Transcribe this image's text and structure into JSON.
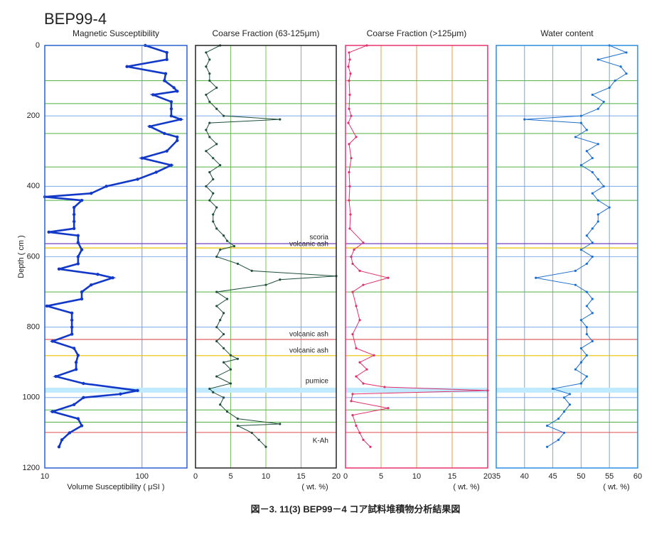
{
  "title": "BEP99-4",
  "caption": "図－3. 11(3) BEP99－4 コア試料堆積物分析結果図",
  "annotations": [
    {
      "text": "scoria",
      "depth": 563,
      "color": "#7040c0"
    },
    {
      "text": "volcanic ash",
      "depth": 575,
      "color": "#e8c000"
    },
    {
      "text": "volcanic ash",
      "depth": 835,
      "color": "#e06060"
    },
    {
      "text": "volcanic ash",
      "depth": 881,
      "color": "#e8c000"
    },
    {
      "text": "pumice",
      "depth_range": [
        972,
        986
      ],
      "color": "#bfeaff"
    },
    {
      "text": "K-Ah",
      "depth": 1099,
      "color": "#e06060"
    }
  ],
  "horizons": [
    {
      "depth": 100,
      "color": "#50b040"
    },
    {
      "depth": 165,
      "color": "#50b040"
    },
    {
      "depth": 250,
      "color": "#50b040"
    },
    {
      "depth": 345,
      "color": "#50b040"
    },
    {
      "depth": 440,
      "color": "#50b040"
    },
    {
      "depth": 700,
      "color": "#50b040"
    },
    {
      "depth": 1035,
      "color": "#50b040"
    },
    {
      "depth": 1070,
      "color": "#50b040"
    }
  ],
  "chart_data": [
    {
      "type": "line",
      "title": "Magnetic Susceptibility",
      "xlabel": "Volume Susceptibility ( μSI )",
      "ylabel": "Depth ( cm )",
      "log_x": true,
      "xlim": [
        10,
        290
      ],
      "xticks": [
        10,
        100
      ],
      "ylim": [
        0,
        1200
      ],
      "yticks": [
        0,
        200,
        400,
        600,
        800,
        1000,
        1200
      ],
      "color": "#1238c8",
      "frame_color": "#2a60d0",
      "grid_color": "#6a9ae8",
      "depth": [
        0,
        20,
        40,
        60,
        80,
        100,
        120,
        130,
        140,
        160,
        180,
        200,
        210,
        230,
        250,
        260,
        270,
        300,
        320,
        340,
        360,
        380,
        400,
        420,
        430,
        440,
        460,
        480,
        500,
        520,
        530,
        540,
        560,
        580,
        600,
        620,
        635,
        650,
        660,
        680,
        700,
        720,
        740,
        760,
        780,
        800,
        820,
        840,
        860,
        880,
        900,
        920,
        940,
        960,
        980,
        990,
        1000,
        1020,
        1040,
        1060,
        1080,
        1100,
        1120,
        1140
      ],
      "values": [
        108,
        180,
        180,
        70,
        175,
        170,
        213,
        230,
        130,
        200,
        200,
        200,
        250,
        120,
        170,
        230,
        230,
        180,
        100,
        200,
        140,
        90,
        43,
        30,
        10,
        24,
        20,
        20,
        20,
        20,
        11,
        22,
        22,
        24,
        22,
        22,
        14,
        35,
        50,
        30,
        24,
        24,
        10.5,
        19,
        19,
        19,
        19,
        12,
        20,
        22,
        21,
        21,
        13,
        25,
        90,
        60,
        25,
        20,
        12,
        22,
        24,
        18,
        15,
        14
      ]
    },
    {
      "type": "line",
      "title": "Coarse Fraction (63-125μm)",
      "xlabel": "( wt. %)",
      "xlim": [
        0,
        20
      ],
      "xticks": [
        0,
        5,
        10,
        15,
        20
      ],
      "ylim": [
        0,
        1200
      ],
      "color": "#1f4f3a",
      "frame_color": "#222222",
      "grid_color": "#7cc060",
      "depth": [
        0,
        20,
        40,
        60,
        80,
        100,
        120,
        140,
        160,
        180,
        200,
        210,
        220,
        240,
        260,
        280,
        300,
        320,
        340,
        360,
        380,
        400,
        420,
        440,
        460,
        480,
        500,
        520,
        540,
        555,
        570,
        580,
        600,
        620,
        640,
        655,
        665,
        680,
        700,
        720,
        740,
        760,
        780,
        800,
        820,
        840,
        860,
        880,
        890,
        900,
        920,
        940,
        960,
        975,
        985,
        1000,
        1020,
        1040,
        1060,
        1075,
        1080,
        1100,
        1120,
        1140
      ],
      "values": [
        3.5,
        1.5,
        2,
        1.5,
        2,
        2,
        3,
        1.5,
        2,
        3,
        4,
        12,
        2,
        1.5,
        2,
        3,
        1.5,
        2.5,
        3.5,
        2,
        2.5,
        1.5,
        2.5,
        2,
        3,
        2.5,
        2.5,
        3,
        4,
        4.5,
        5.5,
        3.5,
        3,
        6,
        8,
        20,
        12,
        10,
        3,
        4.5,
        3,
        4,
        3.5,
        3,
        4,
        3,
        4,
        5,
        6,
        4,
        5,
        3,
        5,
        2,
        2.5,
        4,
        3.5,
        4.5,
        6,
        12,
        6,
        8,
        9,
        10
      ]
    },
    {
      "type": "line",
      "title": "Coarse Fraction (>125μm)",
      "xlabel": "( wt. %)",
      "xlim": [
        0,
        20
      ],
      "xticks": [
        0,
        5,
        10,
        15,
        20
      ],
      "ylim": [
        0,
        1200
      ],
      "color": "#e0306a",
      "frame_color": "#e8336a",
      "grid_color": "#e0a040",
      "depth": [
        0,
        20,
        40,
        60,
        80,
        100,
        140,
        180,
        200,
        220,
        260,
        280,
        320,
        360,
        400,
        440,
        480,
        520,
        560,
        580,
        600,
        620,
        640,
        660,
        680,
        700,
        740,
        780,
        820,
        860,
        880,
        900,
        920,
        940,
        960,
        970,
        980,
        990,
        1010,
        1030,
        1050,
        1080,
        1100,
        1120,
        1140
      ],
      "values": [
        3,
        0.5,
        0.6,
        0.4,
        0.7,
        0.5,
        0.6,
        0.5,
        0.8,
        0.4,
        1.5,
        0.5,
        0.8,
        0.5,
        0.6,
        0.5,
        0.7,
        0.6,
        2.5,
        1.2,
        0.8,
        1,
        2,
        6,
        2.5,
        1,
        1.5,
        2,
        1,
        1.5,
        4,
        2,
        3,
        1.5,
        2.5,
        5.5,
        20,
        1,
        0.8,
        6,
        1,
        1.5,
        2,
        2.5,
        3.5
      ]
    },
    {
      "type": "line",
      "title": "Water content",
      "xlabel": "( wt. %)",
      "xlim": [
        35,
        60
      ],
      "xticks": [
        35,
        40,
        45,
        50,
        55,
        60
      ],
      "ylim": [
        0,
        1200
      ],
      "color": "#1e6fcc",
      "frame_color": "#2a8de0",
      "grid_color": "#6aaee8",
      "depth": [
        0,
        20,
        40,
        60,
        80,
        100,
        120,
        140,
        160,
        180,
        200,
        210,
        220,
        240,
        260,
        280,
        300,
        320,
        340,
        360,
        380,
        400,
        420,
        440,
        460,
        480,
        500,
        520,
        540,
        560,
        580,
        600,
        620,
        640,
        660,
        680,
        700,
        720,
        740,
        760,
        780,
        800,
        820,
        840,
        860,
        880,
        900,
        920,
        940,
        960,
        975,
        990,
        1000,
        1020,
        1040,
        1060,
        1080,
        1100,
        1120,
        1140
      ],
      "values": [
        55,
        58,
        53,
        57,
        58,
        56,
        55,
        52,
        54,
        53,
        50,
        40,
        50,
        51,
        49,
        53,
        51,
        52,
        50,
        52,
        53,
        54,
        52,
        53,
        55,
        53,
        53,
        52,
        51,
        52,
        50,
        52,
        51,
        49,
        42,
        49,
        51,
        52,
        51,
        52,
        50,
        51,
        51,
        52,
        50,
        51,
        50,
        49,
        51,
        50,
        45,
        48,
        47,
        48,
        47,
        46,
        44,
        47,
        46,
        44
      ]
    }
  ]
}
